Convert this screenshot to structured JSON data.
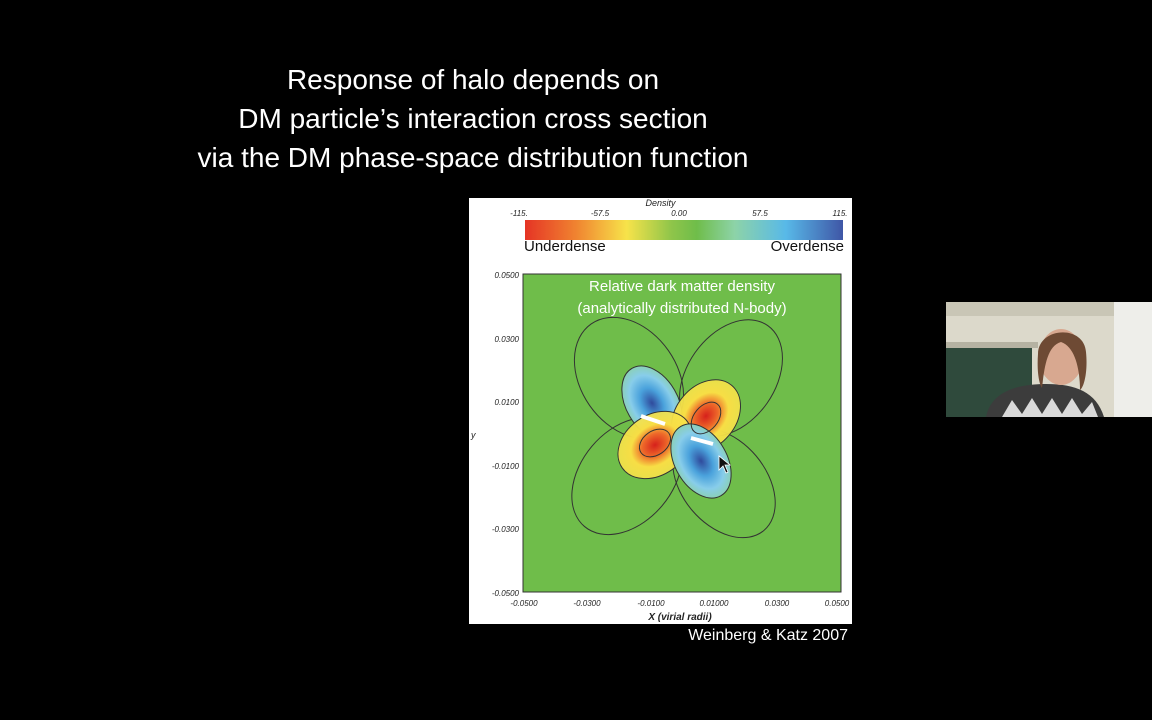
{
  "slide": {
    "title_lines": [
      "Response of halo depends on",
      "DM particle’s interaction cross section",
      "via the DM phase-space distribution function"
    ],
    "caption": "Weinberg & Katz 2007"
  },
  "figure": {
    "colorbar_title": "Density",
    "colorbar_ticks": [
      "-115.",
      "-57.5",
      "0.00",
      "57.5",
      "115."
    ],
    "underdense_label": "Underdense",
    "overdense_label": "Overdense",
    "plot_title_line1": "Relative dark matter density",
    "plot_title_line2": "(analytically distributed N-body)",
    "y_axis_label": "y",
    "x_axis_label": "X (virial radii)",
    "y_ticks": [
      "0.0500",
      "0.0300",
      "0.0100",
      "-0.0100",
      "-0.0300",
      "-0.0500"
    ],
    "x_ticks": [
      "-0.0500",
      "-0.0300",
      "-0.0100",
      "0.01000",
      "0.0300",
      "0.0500"
    ],
    "colors": {
      "background_green": "#6fbd4a",
      "underdense_red": "#e53425",
      "overdense_blue": "#3f56a6"
    }
  },
  "webcam": {
    "icon": "presenter-video"
  }
}
